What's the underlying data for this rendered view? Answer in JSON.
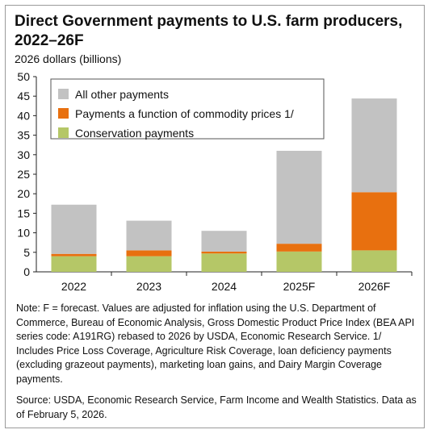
{
  "title": "Direct Government payments to U.S. farm producers, 2022–26F",
  "subtitle": "2026 dollars (billions)",
  "chart_data": {
    "type": "bar",
    "stacked": true,
    "categories": [
      "2022",
      "2023",
      "2024",
      "2025F",
      "2026F"
    ],
    "series": [
      {
        "name": "Conservation payments",
        "color": "#b5c767",
        "values": [
          4.0,
          4.0,
          4.7,
          5.2,
          5.5
        ]
      },
      {
        "name": "Payments a function of commodity prices 1/",
        "color": "#e8700f",
        "values": [
          0.6,
          1.5,
          0.5,
          2.0,
          14.9
        ]
      },
      {
        "name": "All other payments",
        "color": "#c2c2c2",
        "values": [
          12.6,
          7.6,
          5.3,
          23.8,
          24.0
        ]
      }
    ],
    "legend_order": [
      "All other payments",
      "Payments a function of commodity prices 1/",
      "Conservation payments"
    ],
    "ylim": [
      0,
      50
    ],
    "yticks": [
      0,
      5,
      10,
      15,
      20,
      25,
      30,
      35,
      40,
      45,
      50
    ],
    "grid": false,
    "legend_position": "top-left"
  },
  "notes": {
    "note": "Note: F = forecast. Values are adjusted for inflation using the U.S. Department of Commerce, Bureau of Economic Analysis, Gross Domestic Product Price Index (BEA API series code: A191RG) rebased to 2026 by USDA, Economic Research Service. 1/ Includes Price Loss Coverage, Agriculture Risk Coverage, loan deficiency payments (excluding grazeout payments), marketing loan gains, and Dairy Margin Coverage payments.",
    "source": "Source: USDA, Economic Research Service, Farm Income and Wealth Statistics. Data as of February 5, 2026."
  }
}
